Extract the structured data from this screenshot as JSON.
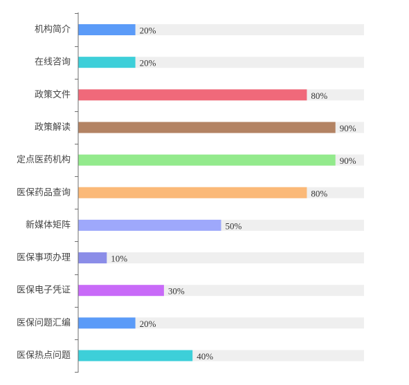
{
  "chart_data": {
    "type": "bar",
    "orientation": "horizontal",
    "categories": [
      "机构简介",
      "在线咨询",
      "政策文件",
      "政策解读",
      "定点医药机构",
      "医保药品查询",
      "新媒体矩阵",
      "医保事项办理",
      "医保电子凭证",
      "医保问题汇编",
      "医保热点问题"
    ],
    "values": [
      20,
      20,
      80,
      90,
      90,
      80,
      50,
      10,
      30,
      20,
      40
    ],
    "value_labels": [
      "20%",
      "20%",
      "80%",
      "90%",
      "90%",
      "80%",
      "50%",
      "10%",
      "30%",
      "20%",
      "40%"
    ],
    "colors": [
      "#5b9bf8",
      "#3dcfd9",
      "#f0697a",
      "#b38363",
      "#93ea8c",
      "#fbb978",
      "#9ea8fb",
      "#8b8de8",
      "#c86af8",
      "#5b9bf8",
      "#3dcfd9"
    ],
    "track_color": "#efefef",
    "axis_color": "#6e6e6e",
    "xlim": [
      0,
      100
    ],
    "title": "",
    "xlabel": "",
    "ylabel": "",
    "grid": false
  }
}
